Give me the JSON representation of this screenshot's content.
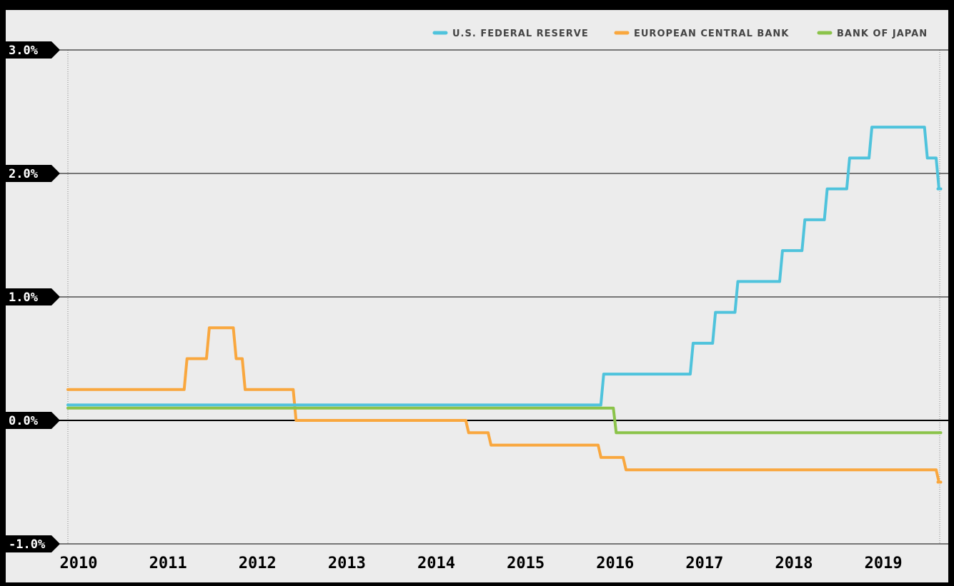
{
  "chart_data": {
    "type": "line",
    "title": "",
    "xlabel": "",
    "ylabel": "",
    "xlim": [
      2010.0,
      2019.75
    ],
    "ylim": [
      -1.0,
      3.0
    ],
    "y_ticks": [
      {
        "value": 3.0,
        "label": "3.0%"
      },
      {
        "value": 2.0,
        "label": "2.0%"
      },
      {
        "value": 1.0,
        "label": "1.0%"
      },
      {
        "value": 0.0,
        "label": "0.0%"
      },
      {
        "value": -1.0,
        "label": "-1.0%"
      }
    ],
    "x_ticks": [
      {
        "value": 2010,
        "label": "2010"
      },
      {
        "value": 2011,
        "label": "2011"
      },
      {
        "value": 2012,
        "label": "2012"
      },
      {
        "value": 2013,
        "label": "2013"
      },
      {
        "value": 2014,
        "label": "2014"
      },
      {
        "value": 2015,
        "label": "2015"
      },
      {
        "value": 2016,
        "label": "2016"
      },
      {
        "value": 2017,
        "label": "2017"
      },
      {
        "value": 2018,
        "label": "2018"
      },
      {
        "value": 2019,
        "label": "2019"
      }
    ],
    "grid": true,
    "legend_position": "top-right",
    "series": [
      {
        "name": "U.S. FEDERAL RESERVE",
        "color": "#4fc3dc",
        "step": "post",
        "points": [
          [
            2010.0,
            0.125
          ],
          [
            2015.96,
            0.375
          ],
          [
            2016.96,
            0.625
          ],
          [
            2017.21,
            0.875
          ],
          [
            2017.46,
            1.125
          ],
          [
            2017.96,
            1.375
          ],
          [
            2018.21,
            1.625
          ],
          [
            2018.46,
            1.875
          ],
          [
            2018.71,
            2.125
          ],
          [
            2018.96,
            2.375
          ],
          [
            2019.58,
            2.125
          ],
          [
            2019.71,
            1.875
          ],
          [
            2019.73,
            1.875
          ]
        ]
      },
      {
        "name": "EUROPEAN CENTRAL BANK",
        "color": "#f9a73e",
        "step": "post",
        "points": [
          [
            2010.0,
            0.25
          ],
          [
            2011.3,
            0.5
          ],
          [
            2011.55,
            0.75
          ],
          [
            2011.85,
            0.5
          ],
          [
            2011.95,
            0.25
          ],
          [
            2012.52,
            0.0
          ],
          [
            2014.45,
            -0.1
          ],
          [
            2014.7,
            -0.2
          ],
          [
            2015.93,
            -0.3
          ],
          [
            2016.21,
            -0.4
          ],
          [
            2019.71,
            -0.5
          ],
          [
            2019.73,
            -0.5
          ]
        ]
      },
      {
        "name": "BANK OF JAPAN",
        "color": "#8bc34a",
        "step": "post",
        "points": [
          [
            2010.0,
            0.1
          ],
          [
            2016.1,
            -0.1
          ],
          [
            2019.73,
            -0.1
          ]
        ]
      }
    ]
  }
}
